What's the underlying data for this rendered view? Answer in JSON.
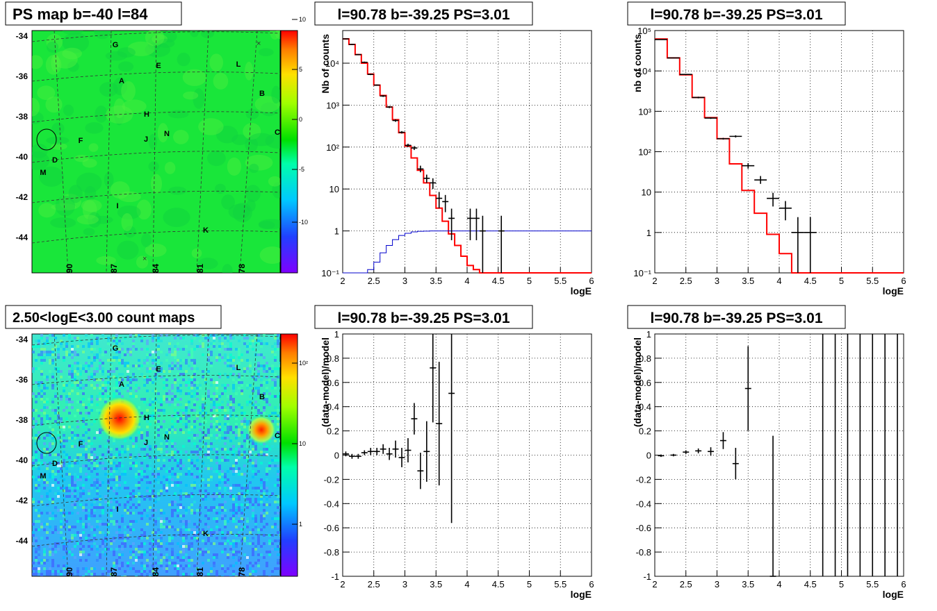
{
  "charts": {
    "ps_map": {
      "title": "PS map b=-40 l=84",
      "y_ticks": [
        "-34",
        "-36",
        "-38",
        "-40",
        "-42",
        "-44"
      ],
      "x_ticks": [
        "90",
        "87",
        "84",
        "81",
        "78"
      ],
      "colorbar_ticks": [
        "10",
        "5",
        "0",
        "-5",
        "-10"
      ]
    },
    "count_map": {
      "title": "2.50<logE<3.00 count maps",
      "y_ticks": [
        "-34",
        "-36",
        "-38",
        "-40",
        "-42",
        "-44"
      ],
      "x_ticks": [
        "90",
        "87",
        "84",
        "81",
        "78"
      ],
      "colorbar_ticks": [
        "10²",
        "10",
        "1"
      ]
    },
    "source_labels": [
      "A",
      "B",
      "C",
      "D",
      "E",
      "F",
      "G",
      "H",
      "I",
      "J",
      "K",
      "L",
      "M",
      "N"
    ]
  },
  "chart_data": [
    {
      "type": "heatmap",
      "title": "PS map b=-40 l=84",
      "x_ticks": [
        "90",
        "87",
        "84",
        "81",
        "78"
      ],
      "y_ticks": [
        "-34",
        "-36",
        "-38",
        "-40",
        "-42",
        "-44"
      ],
      "colorbar_range": [
        -12,
        12
      ],
      "colorbar_ticks": [
        "10",
        "5",
        "0",
        "-5",
        "-10"
      ],
      "sources": [
        {
          "label": "A",
          "l": 86.0,
          "b": -37.7
        },
        {
          "label": "B",
          "l": 76.3,
          "b": -38.3
        },
        {
          "label": "C",
          "l": 75.6,
          "b": -40.4
        },
        {
          "label": "D",
          "l": 91.3,
          "b": -41.8
        },
        {
          "label": "E",
          "l": 84.3,
          "b": -36.7
        },
        {
          "label": "F",
          "l": 88.7,
          "b": -40.8
        },
        {
          "label": "G",
          "l": 86.8,
          "b": -35.6
        },
        {
          "label": "H",
          "l": 84.6,
          "b": -39.6
        },
        {
          "label": "I",
          "l": 86.0,
          "b": -44.2
        },
        {
          "label": "J",
          "l": 84.8,
          "b": -40.8
        },
        {
          "label": "K",
          "l": 80.7,
          "b": -45.3
        },
        {
          "label": "L",
          "l": 78.1,
          "b": -36.6
        },
        {
          "label": "M",
          "l": 92.2,
          "b": -42.4
        },
        {
          "label": "N",
          "l": 83.2,
          "b": -40.6
        }
      ]
    },
    {
      "type": "heatmap",
      "title": "2.50<logE<3.00 count maps",
      "x_ticks": [
        "90",
        "87",
        "84",
        "81",
        "78"
      ],
      "y_ticks": [
        "-34",
        "-36",
        "-38",
        "-40",
        "-42",
        "-44"
      ],
      "colorbar_scale": "log",
      "colorbar_ticks": [
        "10²",
        "10",
        "1"
      ]
    },
    {
      "type": "line",
      "title": "l=90.78 b=-39.25 PS=3.01",
      "xlabel": "logE",
      "ylabel": "Nb of counts",
      "xlim": [
        2,
        6
      ],
      "ylim": [
        0.1,
        60000
      ],
      "yscale": "log",
      "x_ticks": [
        "2",
        "2.5",
        "3",
        "3.5",
        "4",
        "4.5",
        "5",
        "5.5",
        "6"
      ],
      "y_ticks": [
        "10⁻¹",
        "1",
        "10",
        "10²",
        "10³",
        "10⁴"
      ],
      "step_edges": [
        2.0,
        2.1,
        2.2,
        2.3,
        2.4,
        2.5,
        2.6,
        2.7,
        2.8,
        2.9,
        3.0,
        3.1,
        3.2,
        3.3,
        3.4,
        3.5,
        3.6,
        3.7,
        3.8,
        3.9,
        4.0,
        4.1,
        4.2,
        4.3,
        4.4,
        4.5,
        4.6,
        4.7,
        4.8,
        4.9,
        5.0,
        5.1,
        5.2,
        5.3,
        5.4,
        5.5,
        5.6,
        5.7,
        5.8,
        5.9,
        6.0
      ],
      "series": [
        {
          "color": "#ff0000",
          "values": [
            38000,
            28000,
            16000,
            10000,
            5500,
            3000,
            1700,
            900,
            450,
            220,
            105,
            55,
            28,
            14,
            7,
            3.5,
            1.7,
            0.85,
            0.45,
            0.25,
            0.15,
            0.12,
            0.1,
            0.1,
            0.1,
            0.1,
            0.1,
            0.1,
            0.1,
            0.1,
            0.1,
            0.1,
            0.1,
            0.1,
            0.1,
            0.1,
            0.1,
            0.1,
            0.1,
            0.1
          ]
        },
        {
          "color": "#0000cc",
          "values": [
            0.1,
            0.1,
            0.1,
            0.1,
            0.12,
            0.18,
            0.3,
            0.45,
            0.62,
            0.78,
            0.88,
            0.95,
            0.98,
            0.99,
            1,
            1,
            1,
            1,
            1,
            1,
            1,
            1,
            1,
            1,
            1,
            1,
            1,
            1,
            1,
            1,
            1,
            1,
            1,
            1,
            1,
            1,
            1,
            1,
            1,
            1
          ]
        }
      ],
      "points": [
        {
          "x": 2.05,
          "y": 38000,
          "ylo": 37000,
          "yhi": 39000
        },
        {
          "x": 2.15,
          "y": 28000,
          "ylo": 27000,
          "yhi": 29000
        },
        {
          "x": 2.25,
          "y": 16000,
          "ylo": 15500,
          "yhi": 16500
        },
        {
          "x": 2.35,
          "y": 10500,
          "ylo": 10100,
          "yhi": 10900
        },
        {
          "x": 2.45,
          "y": 5400,
          "ylo": 5200,
          "yhi": 5600
        },
        {
          "x": 2.55,
          "y": 3000,
          "ylo": 2900,
          "yhi": 3100
        },
        {
          "x": 2.65,
          "y": 1650,
          "ylo": 1570,
          "yhi": 1730
        },
        {
          "x": 2.75,
          "y": 900,
          "ylo": 850,
          "yhi": 950
        },
        {
          "x": 2.85,
          "y": 430,
          "ylo": 400,
          "yhi": 460
        },
        {
          "x": 2.95,
          "y": 225,
          "ylo": 210,
          "yhi": 240
        },
        {
          "x": 3.05,
          "y": 110,
          "ylo": 100,
          "yhi": 120
        },
        {
          "x": 3.15,
          "y": 95,
          "ylo": 85,
          "yhi": 105
        },
        {
          "x": 3.25,
          "y": 30,
          "ylo": 25,
          "yhi": 36
        },
        {
          "x": 3.35,
          "y": 18,
          "ylo": 14,
          "yhi": 22
        },
        {
          "x": 3.45,
          "y": 14,
          "ylo": 10,
          "yhi": 18
        },
        {
          "x": 3.55,
          "y": 6,
          "ylo": 3.5,
          "yhi": 8.5
        },
        {
          "x": 3.65,
          "y": 5,
          "ylo": 2.8,
          "yhi": 7.2
        },
        {
          "x": 3.75,
          "y": 2,
          "ylo": 0.6,
          "yhi": 3.4
        },
        {
          "x": 4.05,
          "y": 2,
          "ylo": 0.6,
          "yhi": 3.4
        },
        {
          "x": 4.15,
          "y": 2,
          "ylo": 0.6,
          "yhi": 3.4
        },
        {
          "x": 4.25,
          "y": 1,
          "ylo": 0.1,
          "yhi": 2.3
        },
        {
          "x": 4.55,
          "y": 1,
          "ylo": 0.1,
          "yhi": 2.3
        }
      ]
    },
    {
      "type": "line",
      "title": "l=90.78 b=-39.25 PS=3.01",
      "xlabel": "logE",
      "ylabel": "nb of counts",
      "xlim": [
        2,
        6
      ],
      "ylim": [
        0.1,
        100000
      ],
      "yscale": "log",
      "x_ticks": [
        "2",
        "2.5",
        "3",
        "3.5",
        "4",
        "4.5",
        "5",
        "5.5",
        "6"
      ],
      "y_ticks": [
        "10⁻¹",
        "1",
        "10",
        "10²",
        "10³",
        "10⁴",
        "10⁵"
      ],
      "step_edges": [
        2.0,
        2.2,
        2.4,
        2.6,
        2.8,
        3.0,
        3.2,
        3.4,
        3.6,
        3.8,
        4.0,
        4.2,
        4.4,
        4.6,
        4.8,
        5.0,
        5.2,
        5.4,
        5.6,
        5.8,
        6.0
      ],
      "series": [
        {
          "color": "#ff0000",
          "values": [
            62000,
            21000,
            8000,
            2200,
            700,
            210,
            50,
            11,
            3,
            0.9,
            0.3,
            0.1,
            0.1,
            0.1,
            0.1,
            0.1,
            0.1,
            0.1,
            0.1,
            0.1
          ]
        }
      ],
      "points": [
        {
          "x": 2.1,
          "y": 60000,
          "ylo": 59000,
          "yhi": 61000
        },
        {
          "x": 2.3,
          "y": 21000,
          "ylo": 20500,
          "yhi": 21500
        },
        {
          "x": 2.5,
          "y": 8200,
          "ylo": 8000,
          "yhi": 8400
        },
        {
          "x": 2.7,
          "y": 2200,
          "ylo": 2100,
          "yhi": 2300
        },
        {
          "x": 2.9,
          "y": 680,
          "ylo": 650,
          "yhi": 710
        },
        {
          "x": 3.1,
          "y": 210,
          "ylo": 200,
          "yhi": 220
        },
        {
          "x": 3.3,
          "y": 240,
          "ylo": 225,
          "yhi": 255
        },
        {
          "x": 3.5,
          "y": 45,
          "ylo": 38,
          "yhi": 52
        },
        {
          "x": 3.7,
          "y": 20,
          "ylo": 16,
          "yhi": 25
        },
        {
          "x": 3.9,
          "y": 7,
          "ylo": 4.4,
          "yhi": 9.6
        },
        {
          "x": 4.1,
          "y": 4,
          "ylo": 2,
          "yhi": 6
        },
        {
          "x": 4.3,
          "y": 1,
          "ylo": 0.1,
          "yhi": 2.4
        },
        {
          "x": 4.5,
          "y": 1,
          "ylo": 0.1,
          "yhi": 2.4
        }
      ]
    },
    {
      "type": "scatter",
      "title": "l=90.78 b=-39.25 PS=3.01",
      "xlabel": "logE",
      "ylabel": "(data-model)/model",
      "xlim": [
        2,
        6
      ],
      "ylim": [
        -1,
        1
      ],
      "x_ticks": [
        "2",
        "2.5",
        "3",
        "3.5",
        "4",
        "4.5",
        "5",
        "5.5",
        "6"
      ],
      "y_ticks": [
        "-1",
        "-0.8",
        "-0.6",
        "-0.4",
        "-0.2",
        "0",
        "0.2",
        "0.4",
        "0.6",
        "0.8",
        "1"
      ],
      "points": [
        {
          "x": 2.05,
          "y": 0.01,
          "ylo": -0.01,
          "yhi": 0.03
        },
        {
          "x": 2.15,
          "y": -0.01,
          "ylo": -0.03,
          "yhi": 0.01
        },
        {
          "x": 2.25,
          "y": -0.01,
          "ylo": -0.03,
          "yhi": 0.01
        },
        {
          "x": 2.35,
          "y": 0.02,
          "ylo": 0.0,
          "yhi": 0.04
        },
        {
          "x": 2.45,
          "y": 0.03,
          "ylo": 0.0,
          "yhi": 0.06
        },
        {
          "x": 2.55,
          "y": 0.03,
          "ylo": 0.0,
          "yhi": 0.06
        },
        {
          "x": 2.65,
          "y": 0.05,
          "ylo": 0.01,
          "yhi": 0.09
        },
        {
          "x": 2.75,
          "y": 0.01,
          "ylo": -0.04,
          "yhi": 0.06
        },
        {
          "x": 2.85,
          "y": 0.05,
          "ylo": -0.02,
          "yhi": 0.12
        },
        {
          "x": 2.95,
          "y": -0.02,
          "ylo": -0.1,
          "yhi": 0.06
        },
        {
          "x": 3.05,
          "y": 0.04,
          "ylo": -0.06,
          "yhi": 0.14
        },
        {
          "x": 3.15,
          "y": 0.3,
          "ylo": 0.17,
          "yhi": 0.43
        },
        {
          "x": 3.25,
          "y": -0.13,
          "ylo": -0.28,
          "yhi": 0.02
        },
        {
          "x": 3.35,
          "y": 0.03,
          "ylo": -0.22,
          "yhi": 0.28
        },
        {
          "x": 3.45,
          "y": 0.72,
          "ylo": 0.27,
          "yhi": 1.0
        },
        {
          "x": 3.55,
          "y": 0.26,
          "ylo": -0.25,
          "yhi": 0.77
        },
        {
          "x": 3.75,
          "y": 0.51,
          "ylo": -0.56,
          "yhi": 1.0
        }
      ]
    },
    {
      "type": "scatter",
      "title": "l=90.78 b=-39.25 PS=3.01",
      "xlabel": "logE",
      "ylabel": "(data-model)/model",
      "xlim": [
        2,
        6
      ],
      "ylim": [
        -1,
        1
      ],
      "x_ticks": [
        "2",
        "2.5",
        "3",
        "3.5",
        "4",
        "4.5",
        "5",
        "5.5",
        "6"
      ],
      "y_ticks": [
        "-1",
        "-0.8",
        "-0.6",
        "-0.4",
        "-0.2",
        "0",
        "0.2",
        "0.4",
        "0.6",
        "0.8",
        "1"
      ],
      "points": [
        {
          "x": 2.1,
          "y": -0.005,
          "ylo": -0.015,
          "yhi": 0.005
        },
        {
          "x": 2.3,
          "y": 0.0,
          "ylo": -0.01,
          "yhi": 0.01
        },
        {
          "x": 2.5,
          "y": 0.025,
          "ylo": 0.01,
          "yhi": 0.04
        },
        {
          "x": 2.7,
          "y": 0.035,
          "ylo": 0.015,
          "yhi": 0.055
        },
        {
          "x": 2.9,
          "y": 0.03,
          "ylo": -0.005,
          "yhi": 0.065
        },
        {
          "x": 3.1,
          "y": 0.12,
          "ylo": 0.05,
          "yhi": 0.19
        },
        {
          "x": 3.3,
          "y": -0.07,
          "ylo": -0.2,
          "yhi": 0.06
        },
        {
          "x": 3.5,
          "y": 0.55,
          "ylo": 0.2,
          "yhi": 0.9
        },
        {
          "x": 3.9,
          "y": -1.0,
          "ylo": -1.0,
          "yhi": 0.16
        },
        {
          "x": 4.7,
          "y": 0,
          "ylo": -1,
          "yhi": 1
        },
        {
          "x": 4.9,
          "y": 0,
          "ylo": -1,
          "yhi": 1
        },
        {
          "x": 5.1,
          "y": 0,
          "ylo": -1,
          "yhi": 1
        },
        {
          "x": 5.3,
          "y": 0,
          "ylo": -1,
          "yhi": 1
        },
        {
          "x": 5.5,
          "y": 0,
          "ylo": -1,
          "yhi": 1
        },
        {
          "x": 5.7,
          "y": 0,
          "ylo": -1,
          "yhi": 1
        },
        {
          "x": 5.9,
          "y": 0,
          "ylo": -1,
          "yhi": 1
        }
      ]
    }
  ]
}
